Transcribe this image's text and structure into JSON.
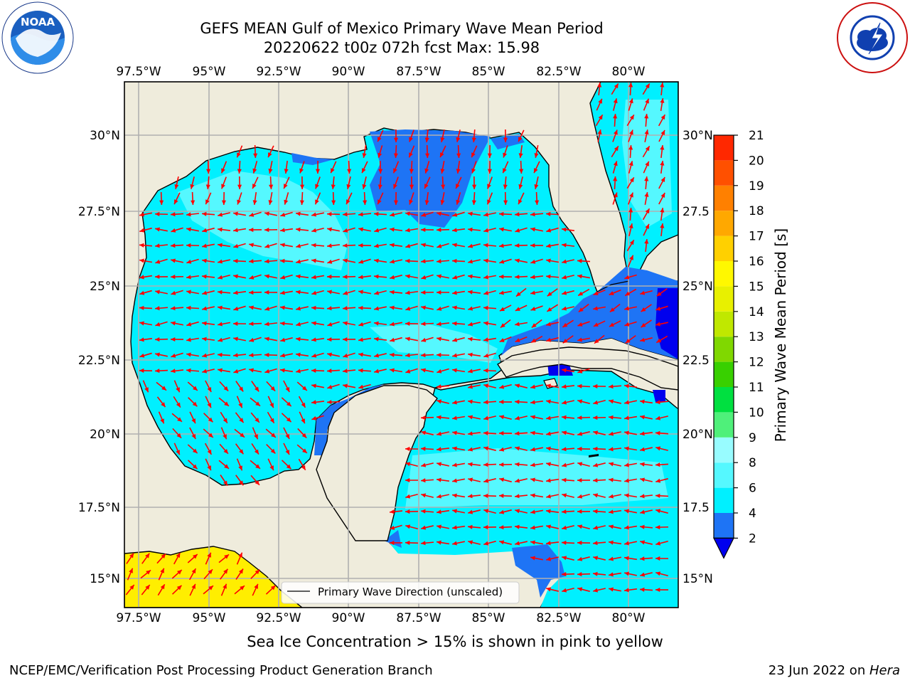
{
  "title": {
    "line1": "GEFS MEAN Gulf of Mexico Primary Wave Mean Period",
    "line2": "20220622 t00z 072h fcst   Max: 15.98"
  },
  "logos": {
    "left": {
      "name": "NOAA",
      "icon": "noaa-logo"
    },
    "right": {
      "name": "NATIONAL WEATHER SERVICE",
      "icon": "nws-logo"
    }
  },
  "map": {
    "lon_labels": [
      "97.5°W",
      "95°W",
      "92.5°W",
      "90°W",
      "87.5°W",
      "85°W",
      "82.5°W",
      "80°W"
    ],
    "lat_labels_left": [
      "30°N",
      "27.5°N",
      "25°N",
      "22.5°N",
      "20°N",
      "17.5°N",
      "15°N"
    ],
    "lat_labels_right": [
      "30°N",
      "27.5",
      "25°N",
      "22.5",
      "20°N",
      "17.5",
      "15°N"
    ],
    "legend_label": "Primary Wave Direction (unscaled)",
    "colors": {
      "land": "#efecdc",
      "period_2_4": "#1e74f5",
      "period_4_6": "#00f0ff",
      "period_6_8": "#55f8ff",
      "period_8_9": "#98fcff",
      "period_lt_2": "#0000ee",
      "period_15_16": "#ffee00",
      "arrow": "#ff0000",
      "grid": "#b0b0b0"
    }
  },
  "colorbar": {
    "label": "Primary Wave Mean Period [s]",
    "ticks": [
      "2",
      "4",
      "6",
      "8",
      "9",
      "10",
      "11",
      "12",
      "13",
      "14",
      "15",
      "16",
      "17",
      "18",
      "19",
      "20",
      "21"
    ],
    "colors": [
      "#1e74f5",
      "#00f0ff",
      "#55f8ff",
      "#98fcff",
      "#4ff07a",
      "#00e040",
      "#38d000",
      "#80d800",
      "#c0e800",
      "#e8f000",
      "#fff800",
      "#ffd000",
      "#ffa800",
      "#ff8000",
      "#ff5000",
      "#ff2800",
      "#ff0000"
    ],
    "extend_color": "#0000ee"
  },
  "caption": "Sea Ice Concentration > 15% is shown in pink to yellow",
  "footer": {
    "left": "NCEP/EMC/Verification Post Processing Product Generation Branch",
    "right_date": "23 Jun 2022 on ",
    "right_host": "Hera"
  }
}
